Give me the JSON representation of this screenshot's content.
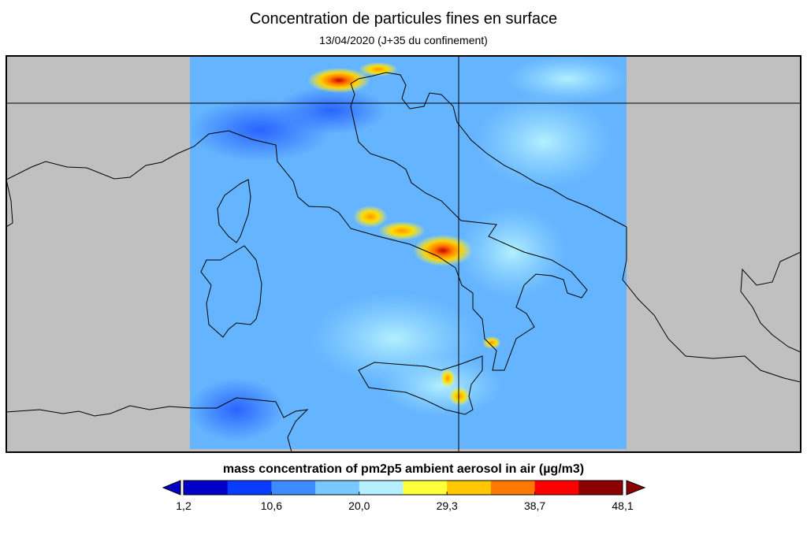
{
  "title": "Concentration de particules fines en surface",
  "subtitle": "13/04/2020 (J+35 du confinement)",
  "colorbar": {
    "label": "mass concentration of pm2p5 ambient aerosol in air (µg/m3)",
    "ticks": [
      "1,2",
      "10,6",
      "20,0",
      "29,3",
      "38,7",
      "48,1"
    ],
    "colors": [
      "#0000c8",
      "#0a3cff",
      "#3c8cff",
      "#78c8ff",
      "#b4f0ff",
      "#ffff3c",
      "#ffc800",
      "#ff7800",
      "#ff0000",
      "#8c0000"
    ]
  },
  "map": {
    "background_color": "#c0c0c0",
    "field_base_color": "#64b4ff"
  }
}
